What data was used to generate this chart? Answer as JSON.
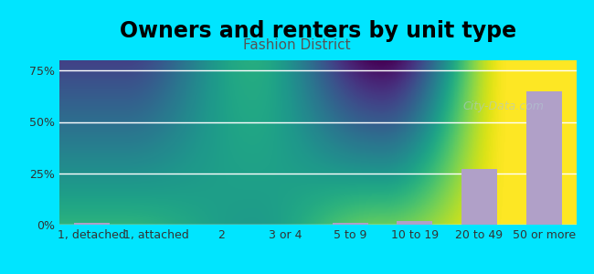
{
  "title": "Owners and renters by unit type",
  "subtitle": "Fashion District",
  "categories": [
    "1, detached",
    "1, attached",
    "2",
    "3 or 4",
    "5 to 9",
    "10 to 19",
    "20 to 49",
    "50 or more"
  ],
  "values": [
    1.0,
    0.0,
    0.0,
    0.0,
    0.8,
    1.8,
    27.0,
    65.0
  ],
  "bar_color": "#b0a0c8",
  "ylim": [
    0,
    80
  ],
  "yticks": [
    0,
    25,
    50,
    75
  ],
  "ytick_labels": [
    "0%",
    "25%",
    "50%",
    "75%"
  ],
  "background_outer": "#00e5ff",
  "background_plot_top": "#e8f5e0",
  "background_plot_bottom": "#f5f0f8",
  "title_fontsize": 17,
  "subtitle_fontsize": 11,
  "tick_fontsize": 9,
  "watermark": "City-Data.com"
}
